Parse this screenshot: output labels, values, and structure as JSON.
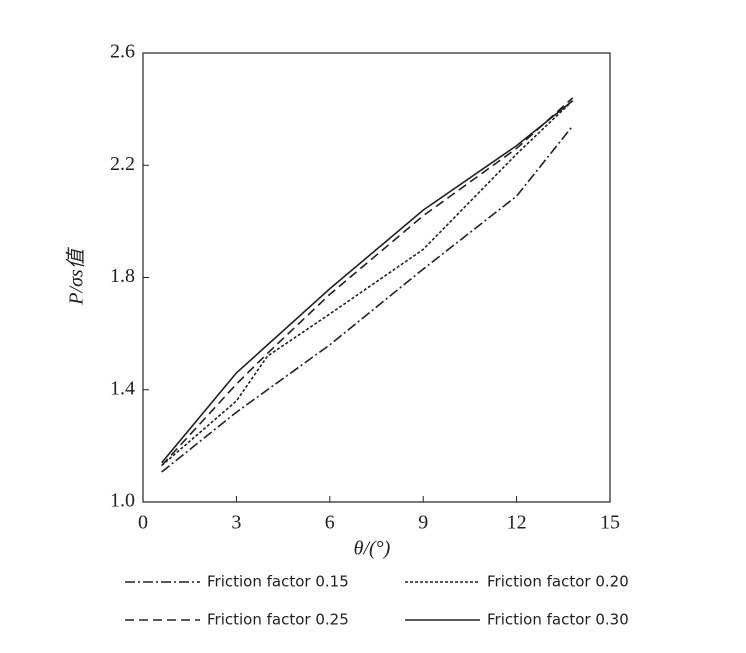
{
  "chart_data": {
    "type": "line",
    "x_label": "θ/(°)",
    "y_label": "P/σs值",
    "x": [
      0.6,
      3,
      4,
      6,
      9,
      12,
      13.8
    ],
    "xlim": [
      0,
      15
    ],
    "xticks": [
      0,
      3,
      6,
      9,
      12,
      15
    ],
    "ylim": [
      1.0,
      2.6
    ],
    "yticks": [
      {
        "value": 1.0,
        "label": "1.0"
      },
      1.4,
      1.8,
      2.2,
      2.6
    ],
    "series": [
      {
        "name": "Friction factor 0.15",
        "color": "#222222",
        "dash": "10 3 2 3",
        "values": [
          1.107,
          1.32,
          1.4,
          1.56,
          1.83,
          2.09,
          2.34
        ]
      },
      {
        "name": "Friction factor 0.20",
        "color": "#222222",
        "dash": "3 2",
        "values": [
          1.13,
          1.36,
          1.52,
          1.67,
          1.9,
          2.24,
          2.43
        ]
      },
      {
        "name": "Friction factor 0.25",
        "color": "#222222",
        "dash": "9 5",
        "values": [
          1.13,
          1.42,
          1.53,
          1.74,
          2.02,
          2.26,
          2.44
        ]
      },
      {
        "name": "Friction factor 0.30",
        "color": "#222222",
        "dash": "none",
        "values": [
          1.14,
          1.46,
          1.56,
          1.76,
          2.04,
          2.27,
          2.43
        ]
      }
    ]
  }
}
